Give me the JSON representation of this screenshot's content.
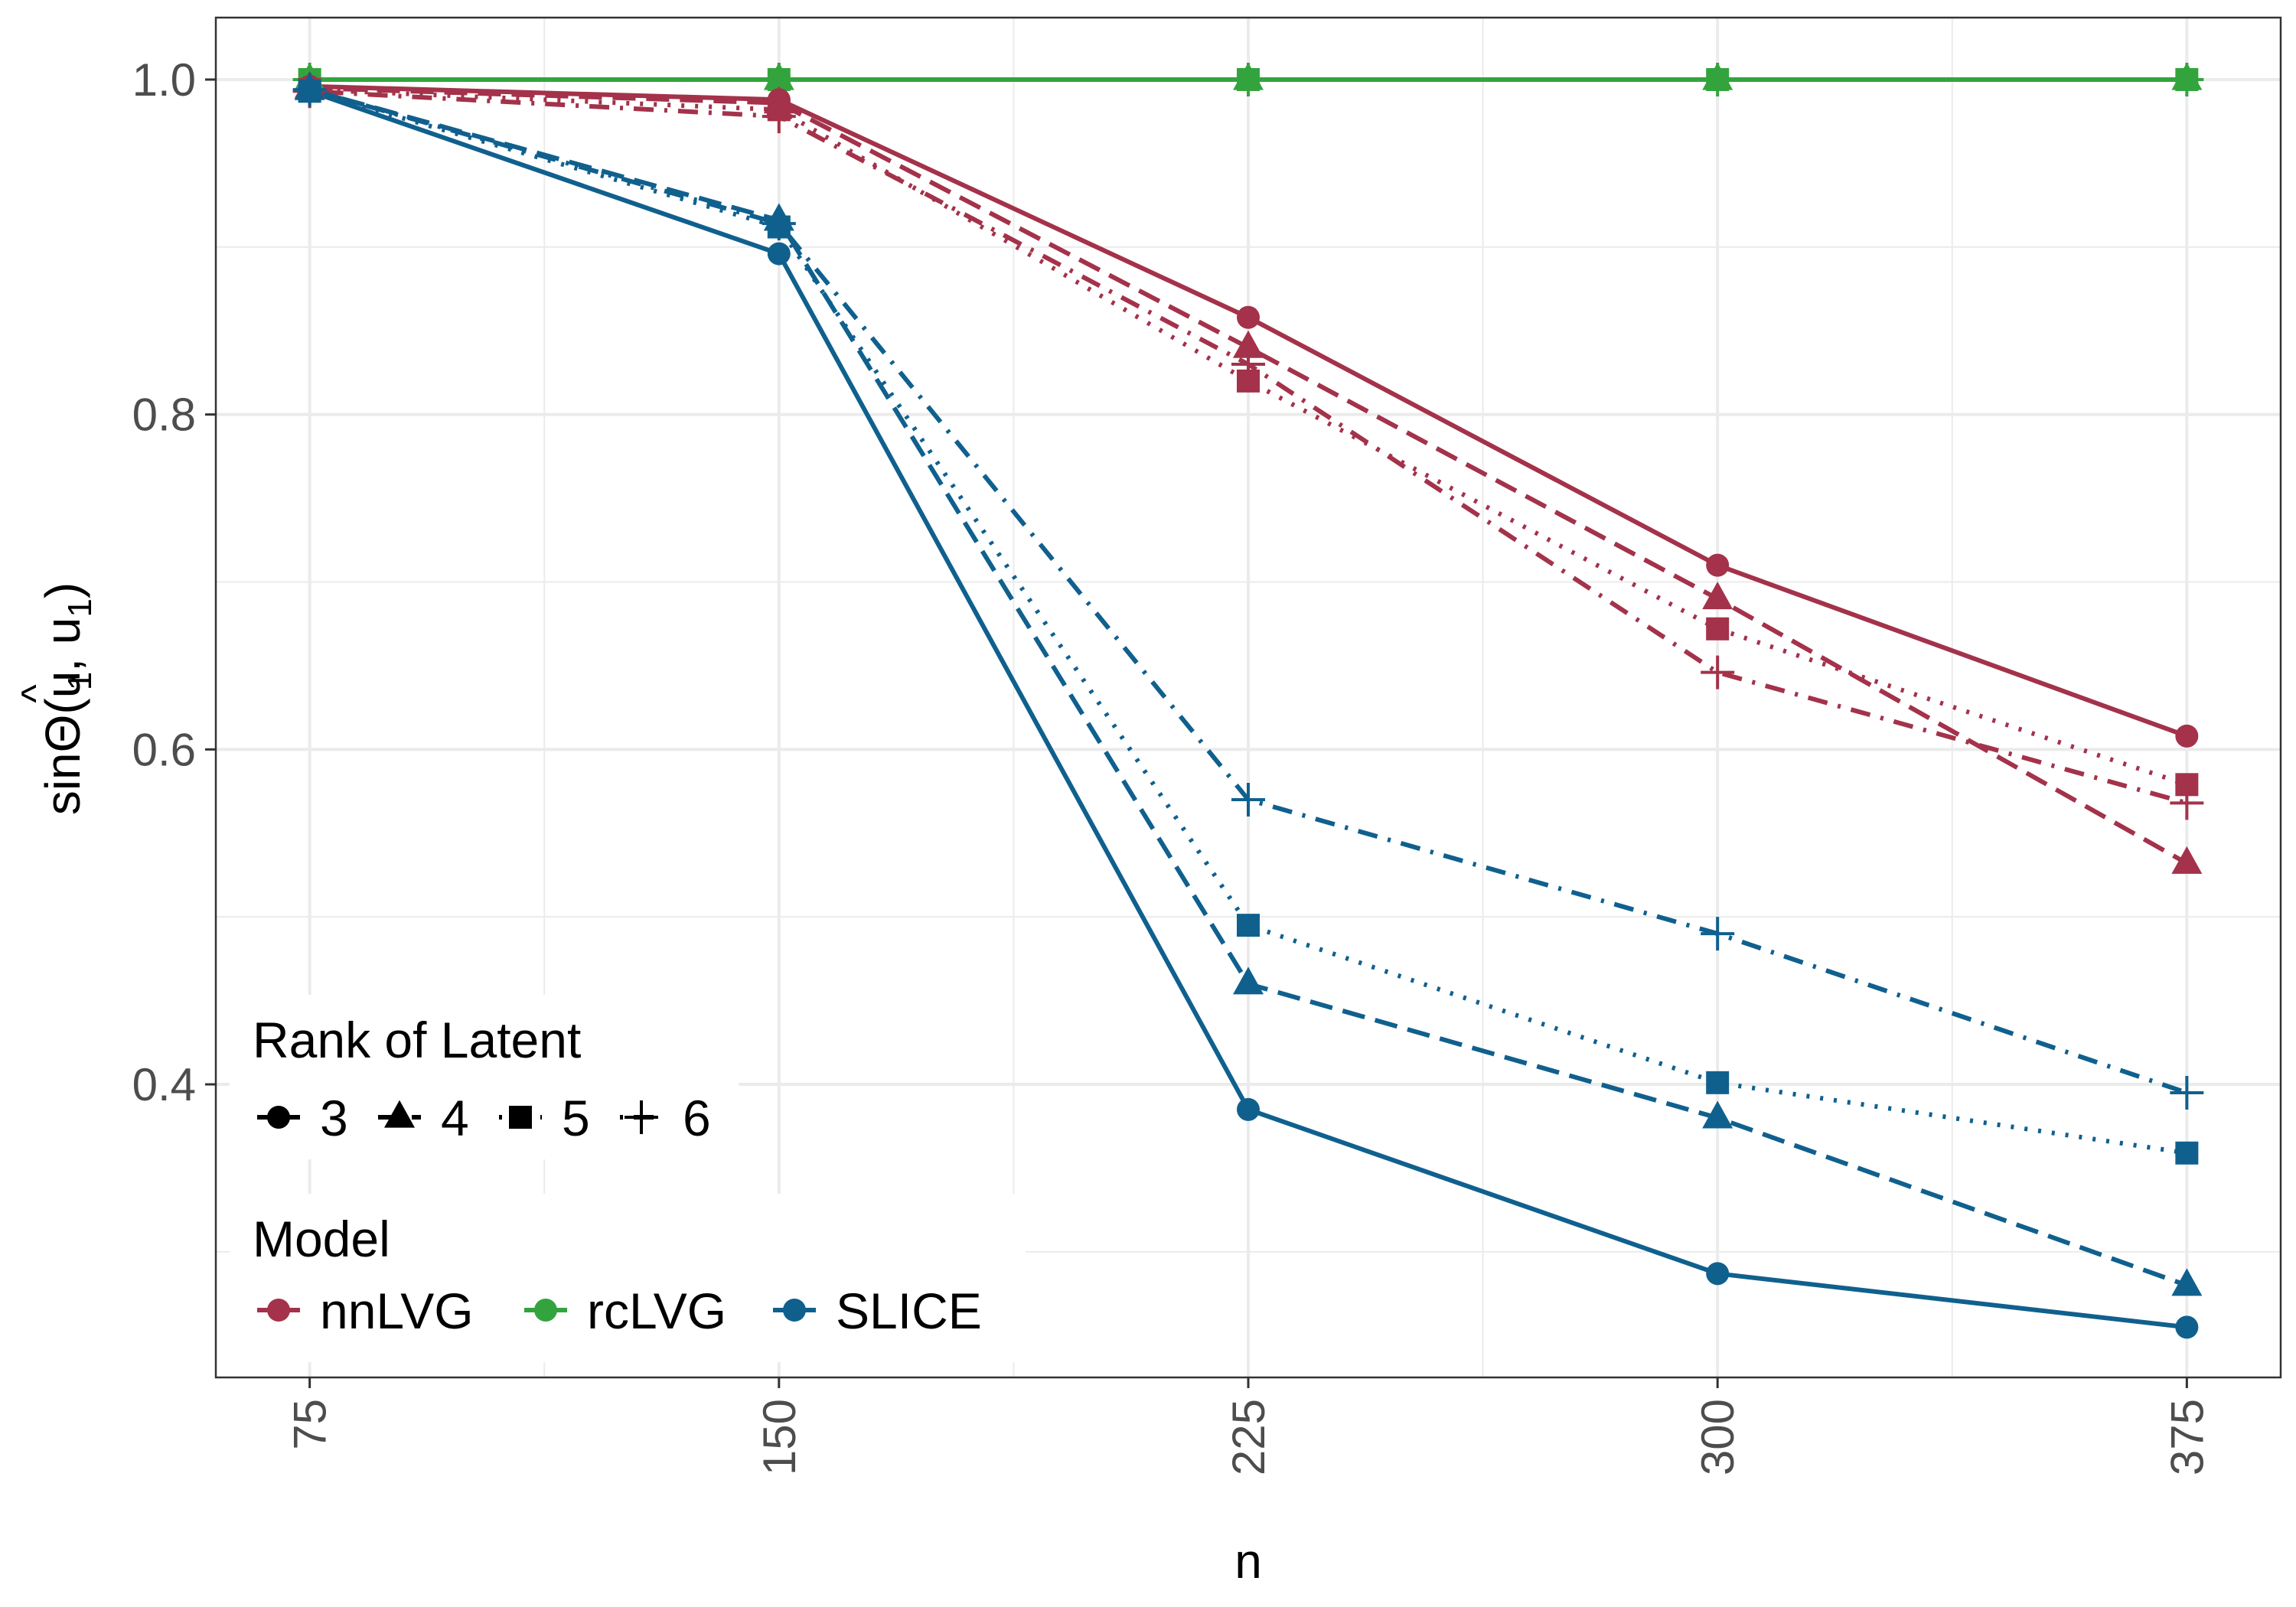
{
  "chart_data": {
    "type": "line",
    "xlabel": "n",
    "ylabel_main": "sinΘ(",
    "ylabel_u": "u",
    "ylabel_hat": "^",
    "ylabel_sub": "1",
    "ylabel_sep": ", ",
    "ylabel_u2": "u",
    "ylabel_sub2": "1",
    "ylabel_close": ")",
    "x": [
      75,
      150,
      225,
      300,
      375
    ],
    "x_tick_labels": [
      "75",
      "150",
      "225",
      "300",
      "375"
    ],
    "xlim": [
      60,
      390
    ],
    "ylim": [
      0.225,
      1.037
    ],
    "y_ticks": [
      0.4,
      0.6,
      0.8,
      1.0
    ],
    "y_tick_labels": [
      "0.4",
      "0.6",
      "0.8",
      "1.0"
    ],
    "y_minor_ticks": [
      0.3,
      0.5,
      0.7,
      0.9
    ],
    "x_minor_ticks": [
      112.5,
      187.5,
      262.5,
      337.5
    ],
    "grid": true,
    "legend_position": "bottom-left, inside",
    "legend": {
      "rank_title": "Rank of Latent",
      "rank_items": [
        {
          "label": "3",
          "shape": "circle",
          "linetype": "solid"
        },
        {
          "label": "4",
          "shape": "triangle",
          "linetype": "dashed"
        },
        {
          "label": "5",
          "shape": "square",
          "linetype": "dotted"
        },
        {
          "label": "6",
          "shape": "plus",
          "linetype": "dotdash"
        }
      ],
      "model_title": "Model",
      "model_items": [
        {
          "label": "nnLVG",
          "color": "#a3324a"
        },
        {
          "label": "rcLVG",
          "color": "#33a43d"
        },
        {
          "label": "SLICE",
          "color": "#10608e"
        }
      ]
    },
    "series": [
      {
        "model": "rcLVG",
        "rank": "3",
        "color": "#33a43d",
        "shape": "circle",
        "linetype": "solid",
        "values": [
          1.0,
          1.0,
          1.0,
          1.0,
          1.0
        ]
      },
      {
        "model": "rcLVG",
        "rank": "4",
        "color": "#33a43d",
        "shape": "triangle",
        "linetype": "dashed",
        "values": [
          1.0,
          1.0,
          1.0,
          1.0,
          1.0
        ]
      },
      {
        "model": "rcLVG",
        "rank": "5",
        "color": "#33a43d",
        "shape": "square",
        "linetype": "dotted",
        "values": [
          1.0,
          1.0,
          1.0,
          1.0,
          1.0
        ]
      },
      {
        "model": "rcLVG",
        "rank": "6",
        "color": "#33a43d",
        "shape": "plus",
        "linetype": "dotdash",
        "values": [
          1.0,
          1.0,
          1.0,
          1.0,
          1.0
        ]
      },
      {
        "model": "nnLVG",
        "rank": "3",
        "color": "#a3324a",
        "shape": "circle",
        "linetype": "solid",
        "values": [
          0.996,
          0.988,
          0.858,
          0.71,
          0.608
        ]
      },
      {
        "model": "nnLVG",
        "rank": "4",
        "color": "#a3324a",
        "shape": "triangle",
        "linetype": "dashed",
        "values": [
          0.995,
          0.986,
          0.84,
          0.69,
          0.532
        ]
      },
      {
        "model": "nnLVG",
        "rank": "5",
        "color": "#a3324a",
        "shape": "square",
        "linetype": "dotted",
        "values": [
          0.994,
          0.982,
          0.82,
          0.672,
          0.579
        ]
      },
      {
        "model": "nnLVG",
        "rank": "6",
        "color": "#a3324a",
        "shape": "plus",
        "linetype": "dotdash",
        "values": [
          0.993,
          0.978,
          0.83,
          0.646,
          0.568
        ]
      },
      {
        "model": "SLICE",
        "rank": "3",
        "color": "#10608e",
        "shape": "circle",
        "linetype": "solid",
        "values": [
          0.993,
          0.896,
          0.385,
          0.287,
          0.255
        ]
      },
      {
        "model": "SLICE",
        "rank": "4",
        "color": "#10608e",
        "shape": "triangle",
        "linetype": "dashed",
        "values": [
          0.994,
          0.916,
          0.46,
          0.38,
          0.28
        ]
      },
      {
        "model": "SLICE",
        "rank": "5",
        "color": "#10608e",
        "shape": "square",
        "linetype": "dotted",
        "values": [
          0.993,
          0.912,
          0.495,
          0.401,
          0.359
        ]
      },
      {
        "model": "SLICE",
        "rank": "6",
        "color": "#10608e",
        "shape": "plus",
        "linetype": "dotdash",
        "values": [
          0.994,
          0.914,
          0.57,
          0.49,
          0.395
        ]
      }
    ]
  }
}
